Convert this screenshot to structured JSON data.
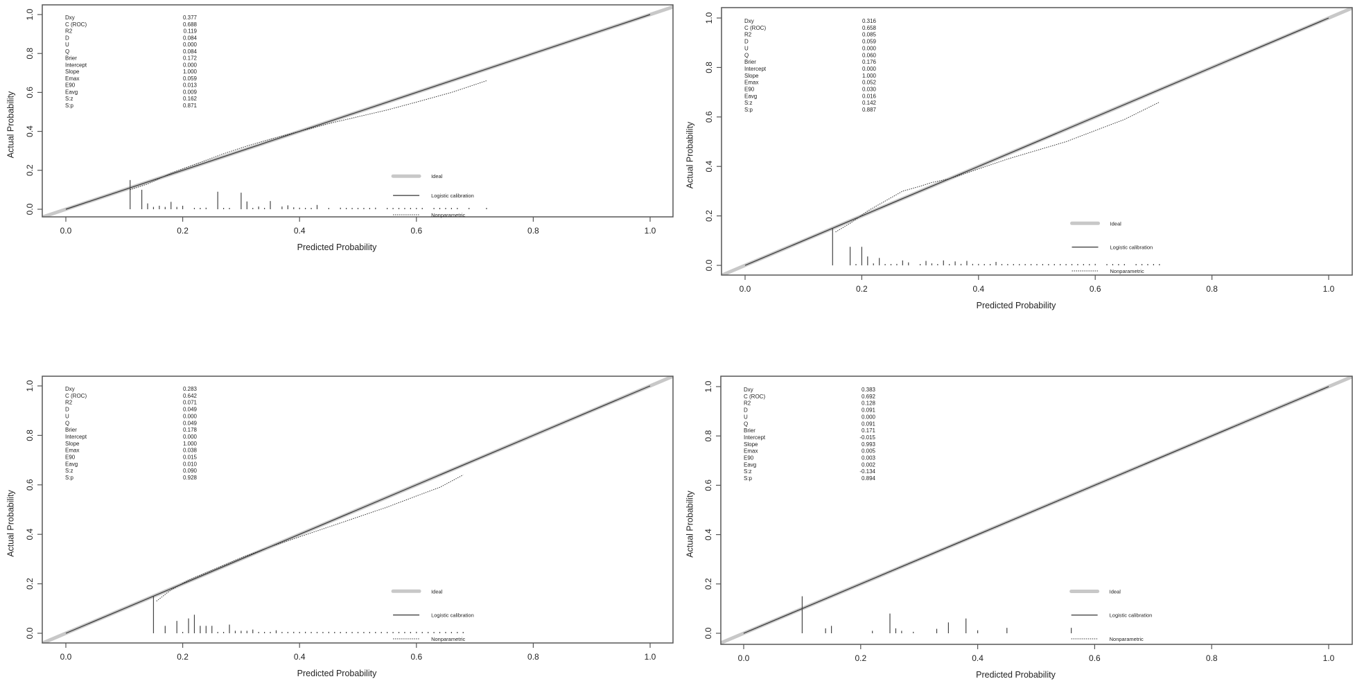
{
  "figure": {
    "xlabel": "Predicted Probability",
    "ylabel": "Actual Probability",
    "legend": {
      "ideal": "Ideal",
      "logistic": "Logistic calibration",
      "nonparametric": "Nonparametric"
    },
    "x_ticks": [
      "0.0",
      "0.2",
      "0.4",
      "0.6",
      "0.8",
      "1.0"
    ],
    "y_ticks": [
      "0.0",
      "0.2",
      "0.4",
      "0.6",
      "0.8",
      "1.0"
    ],
    "colors": {
      "ideal": "#c8c8c8",
      "logistic": "#333333",
      "nonparametric": "#333333",
      "axis": "#555555"
    },
    "stat_labels": [
      "Dxy",
      "C (ROC)",
      "R2",
      "D",
      "U",
      "Q",
      "Brier",
      "Intercept",
      "Slope",
      "Emax",
      "E90",
      "Eavg",
      "S:z",
      "S:p"
    ]
  },
  "chart_data": [
    {
      "type": "line",
      "title": "Calibration plot (panel 1, top-left)",
      "xlabel": "Predicted Probability",
      "ylabel": "Actual Probability",
      "xlim": [
        0,
        1
      ],
      "ylim": [
        0,
        1
      ],
      "stats": [
        "0.377",
        "0.688",
        "0.119",
        "0.084",
        "0.000",
        "0.084",
        "0.172",
        "0.000",
        "1.000",
        "0.059",
        "0.013",
        "0.009",
        "0.162",
        "0.871"
      ],
      "logistic": {
        "x": [
          0.0,
          1.0
        ],
        "y": [
          0.0,
          1.0
        ]
      },
      "nonparametric": {
        "x": [
          0.11,
          0.14,
          0.18,
          0.22,
          0.27,
          0.31,
          0.35,
          0.4,
          0.45,
          0.5,
          0.55,
          0.6,
          0.66,
          0.72
        ],
        "y": [
          0.1,
          0.13,
          0.185,
          0.23,
          0.285,
          0.325,
          0.36,
          0.4,
          0.44,
          0.475,
          0.51,
          0.55,
          0.6,
          0.66
        ]
      },
      "spikes": {
        "x": [
          0.11,
          0.13,
          0.14,
          0.15,
          0.16,
          0.17,
          0.18,
          0.19,
          0.2,
          0.22,
          0.23,
          0.24,
          0.26,
          0.27,
          0.28,
          0.3,
          0.31,
          0.32,
          0.33,
          0.34,
          0.35,
          0.37,
          0.38,
          0.39,
          0.4,
          0.41,
          0.42,
          0.43,
          0.45,
          0.47,
          0.48,
          0.49,
          0.5,
          0.51,
          0.52,
          0.53,
          0.55,
          0.56,
          0.57,
          0.58,
          0.59,
          0.6,
          0.61,
          0.63,
          0.64,
          0.65,
          0.66,
          0.67,
          0.69,
          0.72
        ],
        "h": [
          0.15,
          0.1,
          0.03,
          0.012,
          0.018,
          0.012,
          0.038,
          0.012,
          0.018,
          0.004,
          0.004,
          0.008,
          0.09,
          0.004,
          0.006,
          0.085,
          0.04,
          0.004,
          0.014,
          0.006,
          0.042,
          0.014,
          0.02,
          0.01,
          0.008,
          0.006,
          0.004,
          0.022,
          0.006,
          0.008,
          0.006,
          0.004,
          0.004,
          0.004,
          0.004,
          0.008,
          0.004,
          0.004,
          0.004,
          0.004,
          0.004,
          0.004,
          0.006,
          0.004,
          0.004,
          0.004,
          0.004,
          0.004,
          0.004,
          0.004
        ]
      },
      "legend_position": "bottom-right"
    },
    {
      "type": "line",
      "title": "Calibration plot (panel 2, top-right)",
      "xlabel": "Predicted Probability",
      "ylabel": "Actual Probability",
      "xlim": [
        0,
        1
      ],
      "ylim": [
        0,
        1
      ],
      "stats": [
        "0.316",
        "0.658",
        "0.085",
        "0.059",
        "0.000",
        "0.060",
        "0.176",
        "0.000",
        "1.000",
        "0.052",
        "0.030",
        "0.016",
        "0.142",
        "0.887"
      ],
      "logistic": {
        "x": [
          0.0,
          1.0
        ],
        "y": [
          0.0,
          1.0
        ]
      },
      "nonparametric": {
        "x": [
          0.155,
          0.18,
          0.21,
          0.24,
          0.27,
          0.3,
          0.32,
          0.35,
          0.4,
          0.45,
          0.5,
          0.55,
          0.6,
          0.65,
          0.71
        ],
        "y": [
          0.135,
          0.17,
          0.22,
          0.26,
          0.3,
          0.32,
          0.335,
          0.35,
          0.39,
          0.43,
          0.465,
          0.5,
          0.545,
          0.59,
          0.66
        ]
      },
      "spikes": {
        "x": [
          0.15,
          0.18,
          0.19,
          0.2,
          0.21,
          0.22,
          0.23,
          0.24,
          0.25,
          0.26,
          0.27,
          0.28,
          0.3,
          0.31,
          0.32,
          0.33,
          0.34,
          0.35,
          0.36,
          0.37,
          0.38,
          0.39,
          0.4,
          0.41,
          0.42,
          0.43,
          0.44,
          0.45,
          0.46,
          0.47,
          0.48,
          0.49,
          0.5,
          0.51,
          0.52,
          0.53,
          0.54,
          0.55,
          0.56,
          0.57,
          0.58,
          0.59,
          0.6,
          0.62,
          0.63,
          0.64,
          0.65,
          0.67,
          0.68,
          0.69,
          0.7,
          0.71
        ],
        "h": [
          0.15,
          0.075,
          0.004,
          0.075,
          0.036,
          0.008,
          0.03,
          0.004,
          0.004,
          0.006,
          0.02,
          0.012,
          0.004,
          0.018,
          0.008,
          0.004,
          0.02,
          0.004,
          0.016,
          0.006,
          0.018,
          0.006,
          0.006,
          0.004,
          0.004,
          0.014,
          0.004,
          0.004,
          0.004,
          0.004,
          0.004,
          0.004,
          0.004,
          0.004,
          0.004,
          0.004,
          0.004,
          0.004,
          0.004,
          0.004,
          0.004,
          0.004,
          0.006,
          0.004,
          0.004,
          0.004,
          0.004,
          0.004,
          0.004,
          0.004,
          0.004,
          0.004
        ]
      },
      "legend_position": "bottom-right"
    },
    {
      "type": "line",
      "title": "Calibration plot (panel 3, bottom-left)",
      "xlabel": "Predicted Probability",
      "ylabel": "Actual Probability",
      "xlim": [
        0,
        1
      ],
      "ylim": [
        0,
        1
      ],
      "stats": [
        "0.283",
        "0.642",
        "0.071",
        "0.049",
        "0.000",
        "0.049",
        "0.178",
        "0.000",
        "1.000",
        "0.038",
        "0.015",
        "0.010",
        "0.090",
        "0.928"
      ],
      "logistic": {
        "x": [
          0.0,
          1.0
        ],
        "y": [
          0.0,
          1.0
        ]
      },
      "nonparametric": {
        "x": [
          0.155,
          0.18,
          0.21,
          0.25,
          0.3,
          0.35,
          0.4,
          0.45,
          0.5,
          0.55,
          0.6,
          0.64,
          0.68
        ],
        "y": [
          0.13,
          0.175,
          0.215,
          0.255,
          0.305,
          0.35,
          0.39,
          0.43,
          0.47,
          0.51,
          0.555,
          0.59,
          0.64
        ]
      },
      "spikes": {
        "x": [
          0.15,
          0.17,
          0.19,
          0.2,
          0.21,
          0.22,
          0.23,
          0.24,
          0.25,
          0.26,
          0.27,
          0.28,
          0.29,
          0.3,
          0.31,
          0.32,
          0.33,
          0.34,
          0.35,
          0.36,
          0.37,
          0.38,
          0.39,
          0.4,
          0.41,
          0.42,
          0.43,
          0.44,
          0.45,
          0.46,
          0.47,
          0.48,
          0.49,
          0.5,
          0.51,
          0.52,
          0.53,
          0.54,
          0.55,
          0.56,
          0.57,
          0.58,
          0.59,
          0.6,
          0.61,
          0.62,
          0.63,
          0.64,
          0.65,
          0.66,
          0.67,
          0.68
        ],
        "h": [
          0.15,
          0.03,
          0.05,
          0.004,
          0.06,
          0.075,
          0.03,
          0.03,
          0.03,
          0.004,
          0.004,
          0.035,
          0.01,
          0.01,
          0.01,
          0.015,
          0.004,
          0.004,
          0.004,
          0.012,
          0.004,
          0.004,
          0.006,
          0.004,
          0.006,
          0.004,
          0.004,
          0.004,
          0.006,
          0.004,
          0.004,
          0.004,
          0.004,
          0.004,
          0.004,
          0.004,
          0.004,
          0.004,
          0.004,
          0.004,
          0.004,
          0.004,
          0.004,
          0.006,
          0.004,
          0.004,
          0.004,
          0.004,
          0.004,
          0.004,
          0.004,
          0.004
        ]
      },
      "legend_position": "bottom-right"
    },
    {
      "type": "line",
      "title": "Calibration plot (panel 4, bottom-right)",
      "xlabel": "Predicted Probability",
      "ylabel": "Actual Probability",
      "xlim": [
        0,
        1
      ],
      "ylim": [
        0,
        1
      ],
      "stats": [
        "0.383",
        "0.692",
        "0.128",
        "0.091",
        "0.000",
        "0.091",
        "0.171",
        "-0.015",
        "0.993",
        "0.005",
        "0.003",
        "0.002",
        "-0.134",
        "0.894"
      ],
      "logistic": {
        "x": [
          0.0,
          1.0
        ],
        "y": [
          0.0,
          1.0
        ]
      },
      "nonparametric": {
        "x": [
          0.0,
          1.0
        ],
        "y": [
          0.0,
          1.0
        ]
      },
      "spikes": {
        "x": [
          0.1,
          0.14,
          0.15,
          0.22,
          0.25,
          0.26,
          0.27,
          0.29,
          0.33,
          0.35,
          0.38,
          0.4,
          0.45,
          0.56
        ],
        "h": [
          0.15,
          0.02,
          0.03,
          0.01,
          0.08,
          0.02,
          0.01,
          0.006,
          0.018,
          0.044,
          0.06,
          0.012,
          0.022,
          0.022
        ]
      },
      "legend_position": "bottom-right"
    }
  ]
}
